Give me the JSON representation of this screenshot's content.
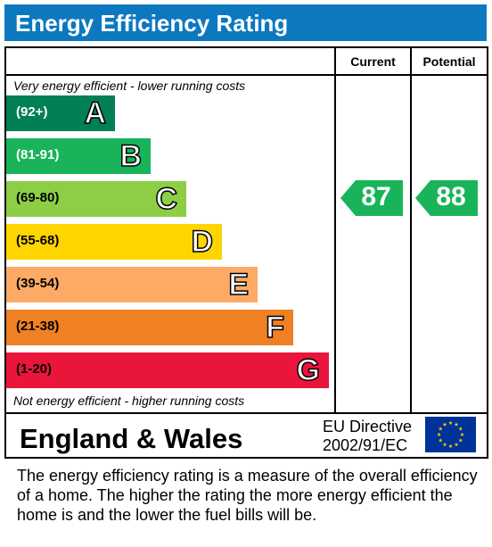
{
  "header": {
    "title": "Energy Efficiency Rating"
  },
  "columns": {
    "current": "Current",
    "potential": "Potential"
  },
  "notes": {
    "top": "Very energy efficient - lower running costs",
    "bottom": "Not energy efficient - higher running costs"
  },
  "chart_data": {
    "type": "bar",
    "title": "Energy Efficiency Rating",
    "categories": [
      "A",
      "B",
      "C",
      "D",
      "E",
      "F",
      "G"
    ],
    "ranges": [
      "(92+)",
      "(81-91)",
      "(69-80)",
      "(55-68)",
      "(39-54)",
      "(21-38)",
      "(1-20)"
    ],
    "colors": [
      "#008054",
      "#19b459",
      "#8dce46",
      "#ffd500",
      "#fcaa65",
      "#ef8023",
      "#e9153b"
    ],
    "range_text_colors": [
      "#ffffff",
      "#ffffff",
      "#000000",
      "#000000",
      "#000000",
      "#000000",
      "#000000"
    ],
    "current": {
      "value": 87,
      "band": "B",
      "color": "#19b459"
    },
    "potential": {
      "value": 88,
      "band": "B",
      "color": "#19b459"
    }
  },
  "footer": {
    "country": "England & Wales",
    "directive_line1": "EU Directive",
    "directive_line2": "2002/91/EC",
    "flag_colors": {
      "background": "#003399",
      "stars": "#ffcc00"
    }
  },
  "description": "The energy efficiency rating is a measure of the overall efficiency of a home.  The higher the rating the more energy efficient the home is and the lower the fuel bills will be."
}
